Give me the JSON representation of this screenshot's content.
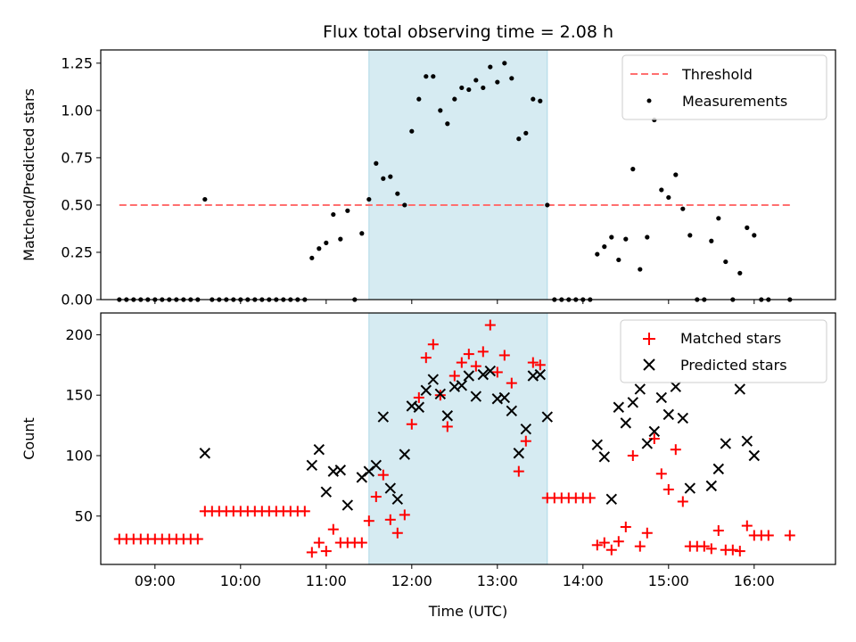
{
  "chart_data": [
    {
      "type": "scatter",
      "title": "Flux total observing time = 2.08 h",
      "ylabel": "Matched/Predicted stars",
      "xlabel": "",
      "xlim": [
        "08:22",
        "16:57"
      ],
      "ylim": [
        0,
        1.32
      ],
      "yticks": [
        "0.00",
        "0.25",
        "0.50",
        "0.75",
        "1.00",
        "1.25"
      ],
      "ytick_values": [
        0,
        0.25,
        0.5,
        0.75,
        1.0,
        1.25
      ],
      "highlight_span": [
        "11:30",
        "13:35"
      ],
      "highlight_color": "#add8e6",
      "legend_position": "upper right",
      "legend": [
        {
          "label": "Threshold",
          "marker": "dashed-line",
          "color": "#ff6f6f"
        },
        {
          "label": "Measurements",
          "marker": "dot",
          "color": "#000000"
        }
      ],
      "threshold": {
        "name": "Threshold",
        "value": 0.5,
        "x_start": "08:35",
        "x_end": "16:25",
        "color": "#ff6f6f"
      },
      "series": [
        {
          "name": "Measurements",
          "color": "#000000",
          "points": [
            [
              "08:35",
              0
            ],
            [
              "08:40",
              0
            ],
            [
              "08:45",
              0
            ],
            [
              "08:50",
              0
            ],
            [
              "08:55",
              0
            ],
            [
              "09:00",
              0
            ],
            [
              "09:05",
              0
            ],
            [
              "09:10",
              0
            ],
            [
              "09:15",
              0
            ],
            [
              "09:20",
              0
            ],
            [
              "09:25",
              0
            ],
            [
              "09:30",
              0
            ],
            [
              "09:35",
              0.53
            ],
            [
              "09:40",
              0
            ],
            [
              "09:45",
              0
            ],
            [
              "09:50",
              0
            ],
            [
              "09:55",
              0
            ],
            [
              "10:00",
              0
            ],
            [
              "10:05",
              0
            ],
            [
              "10:10",
              0
            ],
            [
              "10:15",
              0
            ],
            [
              "10:20",
              0
            ],
            [
              "10:25",
              0
            ],
            [
              "10:30",
              0
            ],
            [
              "10:35",
              0
            ],
            [
              "10:40",
              0
            ],
            [
              "10:45",
              0
            ],
            [
              "10:50",
              0.22
            ],
            [
              "10:55",
              0.27
            ],
            [
              "11:00",
              0.3
            ],
            [
              "11:05",
              0.45
            ],
            [
              "11:10",
              0.32
            ],
            [
              "11:15",
              0.47
            ],
            [
              "11:20",
              0
            ],
            [
              "11:25",
              0.35
            ],
            [
              "11:30",
              0.53
            ],
            [
              "11:35",
              0.72
            ],
            [
              "11:40",
              0.64
            ],
            [
              "11:45",
              0.65
            ],
            [
              "11:50",
              0.56
            ],
            [
              "11:55",
              0.5
            ],
            [
              "12:00",
              0.89
            ],
            [
              "12:05",
              1.06
            ],
            [
              "12:10",
              1.18
            ],
            [
              "12:15",
              1.18
            ],
            [
              "12:20",
              1.0
            ],
            [
              "12:25",
              0.93
            ],
            [
              "12:30",
              1.06
            ],
            [
              "12:35",
              1.12
            ],
            [
              "12:40",
              1.11
            ],
            [
              "12:45",
              1.16
            ],
            [
              "12:50",
              1.12
            ],
            [
              "12:55",
              1.23
            ],
            [
              "13:00",
              1.15
            ],
            [
              "13:05",
              1.25
            ],
            [
              "13:10",
              1.17
            ],
            [
              "13:15",
              0.85
            ],
            [
              "13:20",
              0.88
            ],
            [
              "13:25",
              1.06
            ],
            [
              "13:30",
              1.05
            ],
            [
              "13:35",
              0.5
            ],
            [
              "13:40",
              0
            ],
            [
              "13:45",
              0
            ],
            [
              "13:50",
              0
            ],
            [
              "13:55",
              0
            ],
            [
              "14:00",
              0
            ],
            [
              "14:05",
              0
            ],
            [
              "14:10",
              0.24
            ],
            [
              "14:15",
              0.28
            ],
            [
              "14:20",
              0.33
            ],
            [
              "14:25",
              0.21
            ],
            [
              "14:30",
              0.32
            ],
            [
              "14:35",
              0.69
            ],
            [
              "14:40",
              0.16
            ],
            [
              "14:45",
              0.33
            ],
            [
              "14:50",
              0.95
            ],
            [
              "14:55",
              0.58
            ],
            [
              "15:00",
              0.54
            ],
            [
              "15:05",
              0.66
            ],
            [
              "15:10",
              0.48
            ],
            [
              "15:15",
              0.34
            ],
            [
              "15:20",
              0
            ],
            [
              "15:25",
              0
            ],
            [
              "15:30",
              0.31
            ],
            [
              "15:35",
              0.43
            ],
            [
              "15:40",
              0.2
            ],
            [
              "15:45",
              0
            ],
            [
              "15:50",
              0.14
            ],
            [
              "15:55",
              0.38
            ],
            [
              "16:00",
              0.34
            ],
            [
              "16:05",
              0
            ],
            [
              "16:10",
              0
            ],
            [
              "16:25",
              0
            ]
          ]
        }
      ]
    },
    {
      "type": "scatter",
      "title": "",
      "ylabel": "Count",
      "xlabel": "Time (UTC)",
      "xlim": [
        "08:22",
        "16:57"
      ],
      "ylim": [
        10,
        218
      ],
      "yticks": [
        "50",
        "100",
        "150",
        "200"
      ],
      "ytick_values": [
        50,
        100,
        150,
        200
      ],
      "xticks": [
        "09:00",
        "10:00",
        "11:00",
        "12:00",
        "13:00",
        "14:00",
        "15:00",
        "16:00"
      ],
      "highlight_span": [
        "11:30",
        "13:35"
      ],
      "highlight_color": "#add8e6",
      "legend_position": "upper right",
      "legend": [
        {
          "label": "Matched stars",
          "marker": "plus",
          "color": "#ff0000"
        },
        {
          "label": "Predicted stars",
          "marker": "x",
          "color": "#000000"
        }
      ],
      "series": [
        {
          "name": "Matched stars",
          "marker": "plus",
          "color": "#ff0000",
          "points": [
            [
              "08:35",
              31
            ],
            [
              "08:40",
              31
            ],
            [
              "08:45",
              31
            ],
            [
              "08:50",
              31
            ],
            [
              "08:55",
              31
            ],
            [
              "09:00",
              31
            ],
            [
              "09:05",
              31
            ],
            [
              "09:10",
              31
            ],
            [
              "09:15",
              31
            ],
            [
              "09:20",
              31
            ],
            [
              "09:25",
              31
            ],
            [
              "09:30",
              31
            ],
            [
              "09:35",
              54
            ],
            [
              "09:40",
              54
            ],
            [
              "09:45",
              54
            ],
            [
              "09:50",
              54
            ],
            [
              "09:55",
              54
            ],
            [
              "10:00",
              54
            ],
            [
              "10:05",
              54
            ],
            [
              "10:10",
              54
            ],
            [
              "10:15",
              54
            ],
            [
              "10:20",
              54
            ],
            [
              "10:25",
              54
            ],
            [
              "10:30",
              54
            ],
            [
              "10:35",
              54
            ],
            [
              "10:40",
              54
            ],
            [
              "10:45",
              54
            ],
            [
              "10:50",
              20
            ],
            [
              "10:55",
              28
            ],
            [
              "11:00",
              21
            ],
            [
              "11:05",
              39
            ],
            [
              "11:10",
              28
            ],
            [
              "11:15",
              28
            ],
            [
              "11:20",
              28
            ],
            [
              "11:25",
              28
            ],
            [
              "11:30",
              46
            ],
            [
              "11:35",
              66
            ],
            [
              "11:40",
              84
            ],
            [
              "11:45",
              47
            ],
            [
              "11:50",
              36
            ],
            [
              "11:55",
              51
            ],
            [
              "12:00",
              126
            ],
            [
              "12:05",
              148
            ],
            [
              "12:10",
              181
            ],
            [
              "12:15",
              192
            ],
            [
              "12:20",
              150
            ],
            [
              "12:25",
              124
            ],
            [
              "12:30",
              166
            ],
            [
              "12:35",
              177
            ],
            [
              "12:40",
              184
            ],
            [
              "12:45",
              174
            ],
            [
              "12:50",
              186
            ],
            [
              "12:55",
              208
            ],
            [
              "13:00",
              169
            ],
            [
              "13:05",
              183
            ],
            [
              "13:10",
              160
            ],
            [
              "13:15",
              87
            ],
            [
              "13:20",
              112
            ],
            [
              "13:25",
              177
            ],
            [
              "13:30",
              175
            ],
            [
              "13:35",
              65
            ],
            [
              "13:40",
              65
            ],
            [
              "13:45",
              65
            ],
            [
              "13:50",
              65
            ],
            [
              "13:55",
              65
            ],
            [
              "14:00",
              65
            ],
            [
              "14:05",
              65
            ],
            [
              "14:10",
              26
            ],
            [
              "14:15",
              28
            ],
            [
              "14:20",
              22
            ],
            [
              "14:25",
              29
            ],
            [
              "14:30",
              41
            ],
            [
              "14:35",
              100
            ],
            [
              "14:40",
              25
            ],
            [
              "14:45",
              36
            ],
            [
              "14:50",
              114
            ],
            [
              "14:55",
              85
            ],
            [
              "15:00",
              72
            ],
            [
              "15:05",
              105
            ],
            [
              "15:10",
              62
            ],
            [
              "15:15",
              25
            ],
            [
              "15:20",
              25
            ],
            [
              "15:25",
              25
            ],
            [
              "15:30",
              23
            ],
            [
              "15:35",
              38
            ],
            [
              "15:40",
              22
            ],
            [
              "15:45",
              22
            ],
            [
              "15:50",
              21
            ],
            [
              "15:55",
              42
            ],
            [
              "16:00",
              34
            ],
            [
              "16:05",
              34
            ],
            [
              "16:10",
              34
            ],
            [
              "16:25",
              34
            ]
          ]
        },
        {
          "name": "Predicted stars",
          "marker": "x",
          "color": "#000000",
          "points": [
            [
              "09:35",
              102
            ],
            [
              "10:50",
              92
            ],
            [
              "10:55",
              105
            ],
            [
              "11:00",
              70
            ],
            [
              "11:05",
              87
            ],
            [
              "11:10",
              88
            ],
            [
              "11:15",
              59
            ],
            [
              "11:25",
              82
            ],
            [
              "11:30",
              87
            ],
            [
              "11:35",
              92
            ],
            [
              "11:40",
              132
            ],
            [
              "11:45",
              73
            ],
            [
              "11:50",
              64
            ],
            [
              "11:55",
              101
            ],
            [
              "12:00",
              141
            ],
            [
              "12:05",
              140
            ],
            [
              "12:10",
              154
            ],
            [
              "12:15",
              163
            ],
            [
              "12:20",
              151
            ],
            [
              "12:25",
              133
            ],
            [
              "12:30",
              157
            ],
            [
              "12:35",
              158
            ],
            [
              "12:40",
              166
            ],
            [
              "12:45",
              149
            ],
            [
              "12:50",
              167
            ],
            [
              "12:55",
              170
            ],
            [
              "13:00",
              147
            ],
            [
              "13:05",
              148
            ],
            [
              "13:10",
              137
            ],
            [
              "13:15",
              102
            ],
            [
              "13:20",
              122
            ],
            [
              "13:25",
              166
            ],
            [
              "13:30",
              167
            ],
            [
              "13:35",
              132
            ],
            [
              "14:10",
              109
            ],
            [
              "14:15",
              99
            ],
            [
              "14:20",
              64
            ],
            [
              "14:25",
              140
            ],
            [
              "14:30",
              127
            ],
            [
              "14:35",
              144
            ],
            [
              "14:40",
              155
            ],
            [
              "14:45",
              110
            ],
            [
              "14:50",
              120
            ],
            [
              "14:55",
              148
            ],
            [
              "15:00",
              134
            ],
            [
              "15:05",
              157
            ],
            [
              "15:10",
              131
            ],
            [
              "15:15",
              73
            ],
            [
              "15:30",
              75
            ],
            [
              "15:35",
              89
            ],
            [
              "15:40",
              110
            ],
            [
              "15:50",
              155
            ],
            [
              "15:55",
              112
            ],
            [
              "16:00",
              100
            ]
          ]
        }
      ]
    }
  ]
}
